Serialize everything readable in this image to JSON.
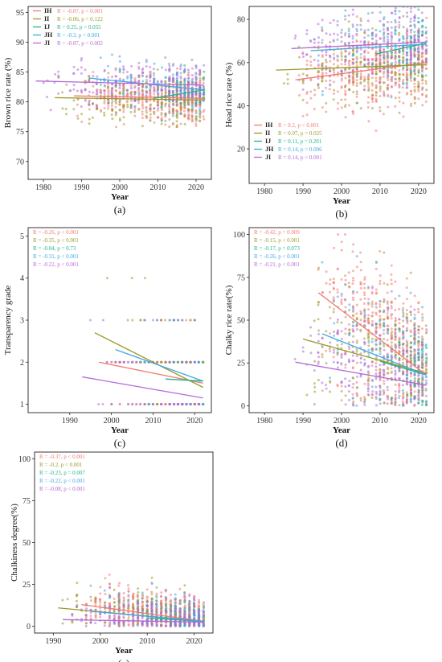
{
  "colors": {
    "IH": "#f07a72",
    "II": "#9a9a2a",
    "IJ": "#1fb48a",
    "JH": "#3fa8e2",
    "JI": "#b36ad8"
  },
  "chart_data": [
    {
      "id": "a",
      "type": "scatter",
      "panel_label": "(a)",
      "xlabel": "Year",
      "ylabel": "Brown rice rate (%)",
      "xlim": [
        1976,
        2024
      ],
      "ylim": [
        67,
        96
      ],
      "xticks": [
        1980,
        1990,
        2000,
        2010,
        2020
      ],
      "yticks": [
        70,
        75,
        80,
        85,
        90,
        95
      ],
      "legend": "top-left",
      "series": [
        {
          "name": "IH",
          "annot": "R = -0.07, p < 0.001",
          "trend_x": [
            1988,
            2022
          ],
          "trend_y": [
            81.0,
            80.6
          ]
        },
        {
          "name": "II",
          "annot": "R = -0.06, p = 0.122",
          "trend_x": [
            1983,
            2022
          ],
          "trend_y": [
            80.7,
            80.3
          ]
        },
        {
          "name": "IJ",
          "annot": "R = 0.25, p = 0.055",
          "trend_x": [
            2009,
            2022
          ],
          "trend_y": [
            80.6,
            82.0
          ]
        },
        {
          "name": "JH",
          "annot": "R = -0.3, p = 0.001",
          "trend_x": [
            1992,
            2022
          ],
          "trend_y": [
            84.0,
            82.0
          ]
        },
        {
          "name": "JI",
          "annot": "R = -0.07, p = 0.002",
          "trend_x": [
            1978,
            2022
          ],
          "trend_y": [
            83.5,
            82.8
          ]
        }
      ]
    },
    {
      "id": "b",
      "type": "scatter",
      "panel_label": "(b)",
      "xlabel": "Year",
      "ylabel": "Head rice rate (%)",
      "xlim": [
        1976,
        2024
      ],
      "ylim": [
        4,
        86
      ],
      "xticks": [
        1980,
        1990,
        2000,
        2010,
        2020
      ],
      "yticks": [
        20,
        40,
        60,
        80
      ],
      "legend": "bottom-left",
      "series": [
        {
          "name": "IH",
          "annot": "R = 0.2, p < 0.001",
          "trend_x": [
            1988,
            2022
          ],
          "trend_y": [
            52.0,
            60.0
          ]
        },
        {
          "name": "II",
          "annot": "R = 0.07, p = 0.025",
          "trend_x": [
            1983,
            2022
          ],
          "trend_y": [
            56.5,
            59.0
          ]
        },
        {
          "name": "IJ",
          "annot": "R = 0.11, p = 0.201",
          "trend_x": [
            2009,
            2022
          ],
          "trend_y": [
            64.0,
            69.0
          ]
        },
        {
          "name": "JH",
          "annot": "R = 0.14, p = 0.006",
          "trend_x": [
            1992,
            2022
          ],
          "trend_y": [
            65.5,
            68.5
          ]
        },
        {
          "name": "JI",
          "annot": "R = 0.14, p < 0.001",
          "trend_x": [
            1987,
            2022
          ],
          "trend_y": [
            66.5,
            69.5
          ]
        }
      ]
    },
    {
      "id": "c",
      "type": "scatter",
      "panel_label": "(c)",
      "xlabel": "Year",
      "ylabel": "Transparency grade",
      "xlim": [
        1980,
        2024
      ],
      "ylim": [
        0.8,
        5.2
      ],
      "xticks": [
        1990,
        2000,
        2010,
        2020
      ],
      "yticks": [
        1,
        2,
        3,
        4,
        5
      ],
      "legend": "top-left",
      "series": [
        {
          "name": "IH",
          "annot": "R = -0.26, p < 0.001",
          "trend_x": [
            1997,
            2022
          ],
          "trend_y": [
            2.0,
            1.5
          ]
        },
        {
          "name": "II",
          "annot": "R = -0.35, p < 0.001",
          "trend_x": [
            1996,
            2022
          ],
          "trend_y": [
            2.7,
            1.4
          ]
        },
        {
          "name": "IJ",
          "annot": "R = -0.04, p = 0.73",
          "trend_x": [
            2013,
            2022
          ],
          "trend_y": [
            1.6,
            1.55
          ]
        },
        {
          "name": "JH",
          "annot": "R = -0.31, p < 0.001",
          "trend_x": [
            2001,
            2022
          ],
          "trend_y": [
            2.3,
            1.55
          ]
        },
        {
          "name": "JI",
          "annot": "R = -0.22, p < 0.001",
          "trend_x": [
            1993,
            2022
          ],
          "trend_y": [
            1.65,
            1.15
          ]
        }
      ]
    },
    {
      "id": "d",
      "type": "scatter",
      "panel_label": "(d)",
      "xlabel": "Year",
      "ylabel": "Chalky rice rate(%)",
      "xlim": [
        1976,
        2024
      ],
      "ylim": [
        -4,
        104
      ],
      "xticks": [
        1980,
        1990,
        2000,
        2010,
        2020
      ],
      "yticks": [
        0,
        25,
        50,
        75,
        100
      ],
      "legend": "top-left",
      "series": [
        {
          "name": "IH",
          "annot": "R = -0.42, p = 0.009",
          "trend_x": [
            1994,
            2022
          ],
          "trend_y": [
            66,
            18
          ]
        },
        {
          "name": "II",
          "annot": "R = -0.15, p < 0.001",
          "trend_x": [
            1990,
            2022
          ],
          "trend_y": [
            39,
            19
          ]
        },
        {
          "name": "IJ",
          "annot": "R = -0.17, p = 0.073",
          "trend_x": [
            2010,
            2022
          ],
          "trend_y": [
            26,
            18
          ]
        },
        {
          "name": "JH",
          "annot": "R = -0.26, p < 0.001",
          "trend_x": [
            1995,
            2022
          ],
          "trend_y": [
            42,
            18
          ]
        },
        {
          "name": "JI",
          "annot": "R = -0.21, p < 0.001",
          "trend_x": [
            1988,
            2022
          ],
          "trend_y": [
            25.5,
            12
          ]
        }
      ]
    },
    {
      "id": "e",
      "type": "scatter",
      "panel_label": "(e)",
      "xlabel": "Year",
      "ylabel": "Chalkiness degree(%)",
      "xlim": [
        1986,
        2024
      ],
      "ylim": [
        -4,
        104
      ],
      "xticks": [
        1990,
        2000,
        2010,
        2020
      ],
      "yticks": [
        0,
        25,
        50,
        75,
        100
      ],
      "legend": "top-left",
      "series": [
        {
          "name": "IH",
          "annot": "R = -0.37, p < 0.001",
          "trend_x": [
            1996,
            2022
          ],
          "trend_y": [
            13,
            3
          ]
        },
        {
          "name": "II",
          "annot": "R = -0.2, p < 0.001",
          "trend_x": [
            1991,
            2022
          ],
          "trend_y": [
            11,
            3
          ]
        },
        {
          "name": "IJ",
          "annot": "R = -0.23, p = 0.007",
          "trend_x": [
            2010,
            2022
          ],
          "trend_y": [
            5,
            3
          ]
        },
        {
          "name": "JH",
          "annot": "R = -0.22, p < 0.001",
          "trend_x": [
            1998,
            2022
          ],
          "trend_y": [
            9,
            3
          ]
        },
        {
          "name": "JI",
          "annot": "R = -0.08, p < 0.001",
          "trend_x": [
            1992,
            2022
          ],
          "trend_y": [
            4,
            2.5
          ]
        }
      ]
    }
  ]
}
